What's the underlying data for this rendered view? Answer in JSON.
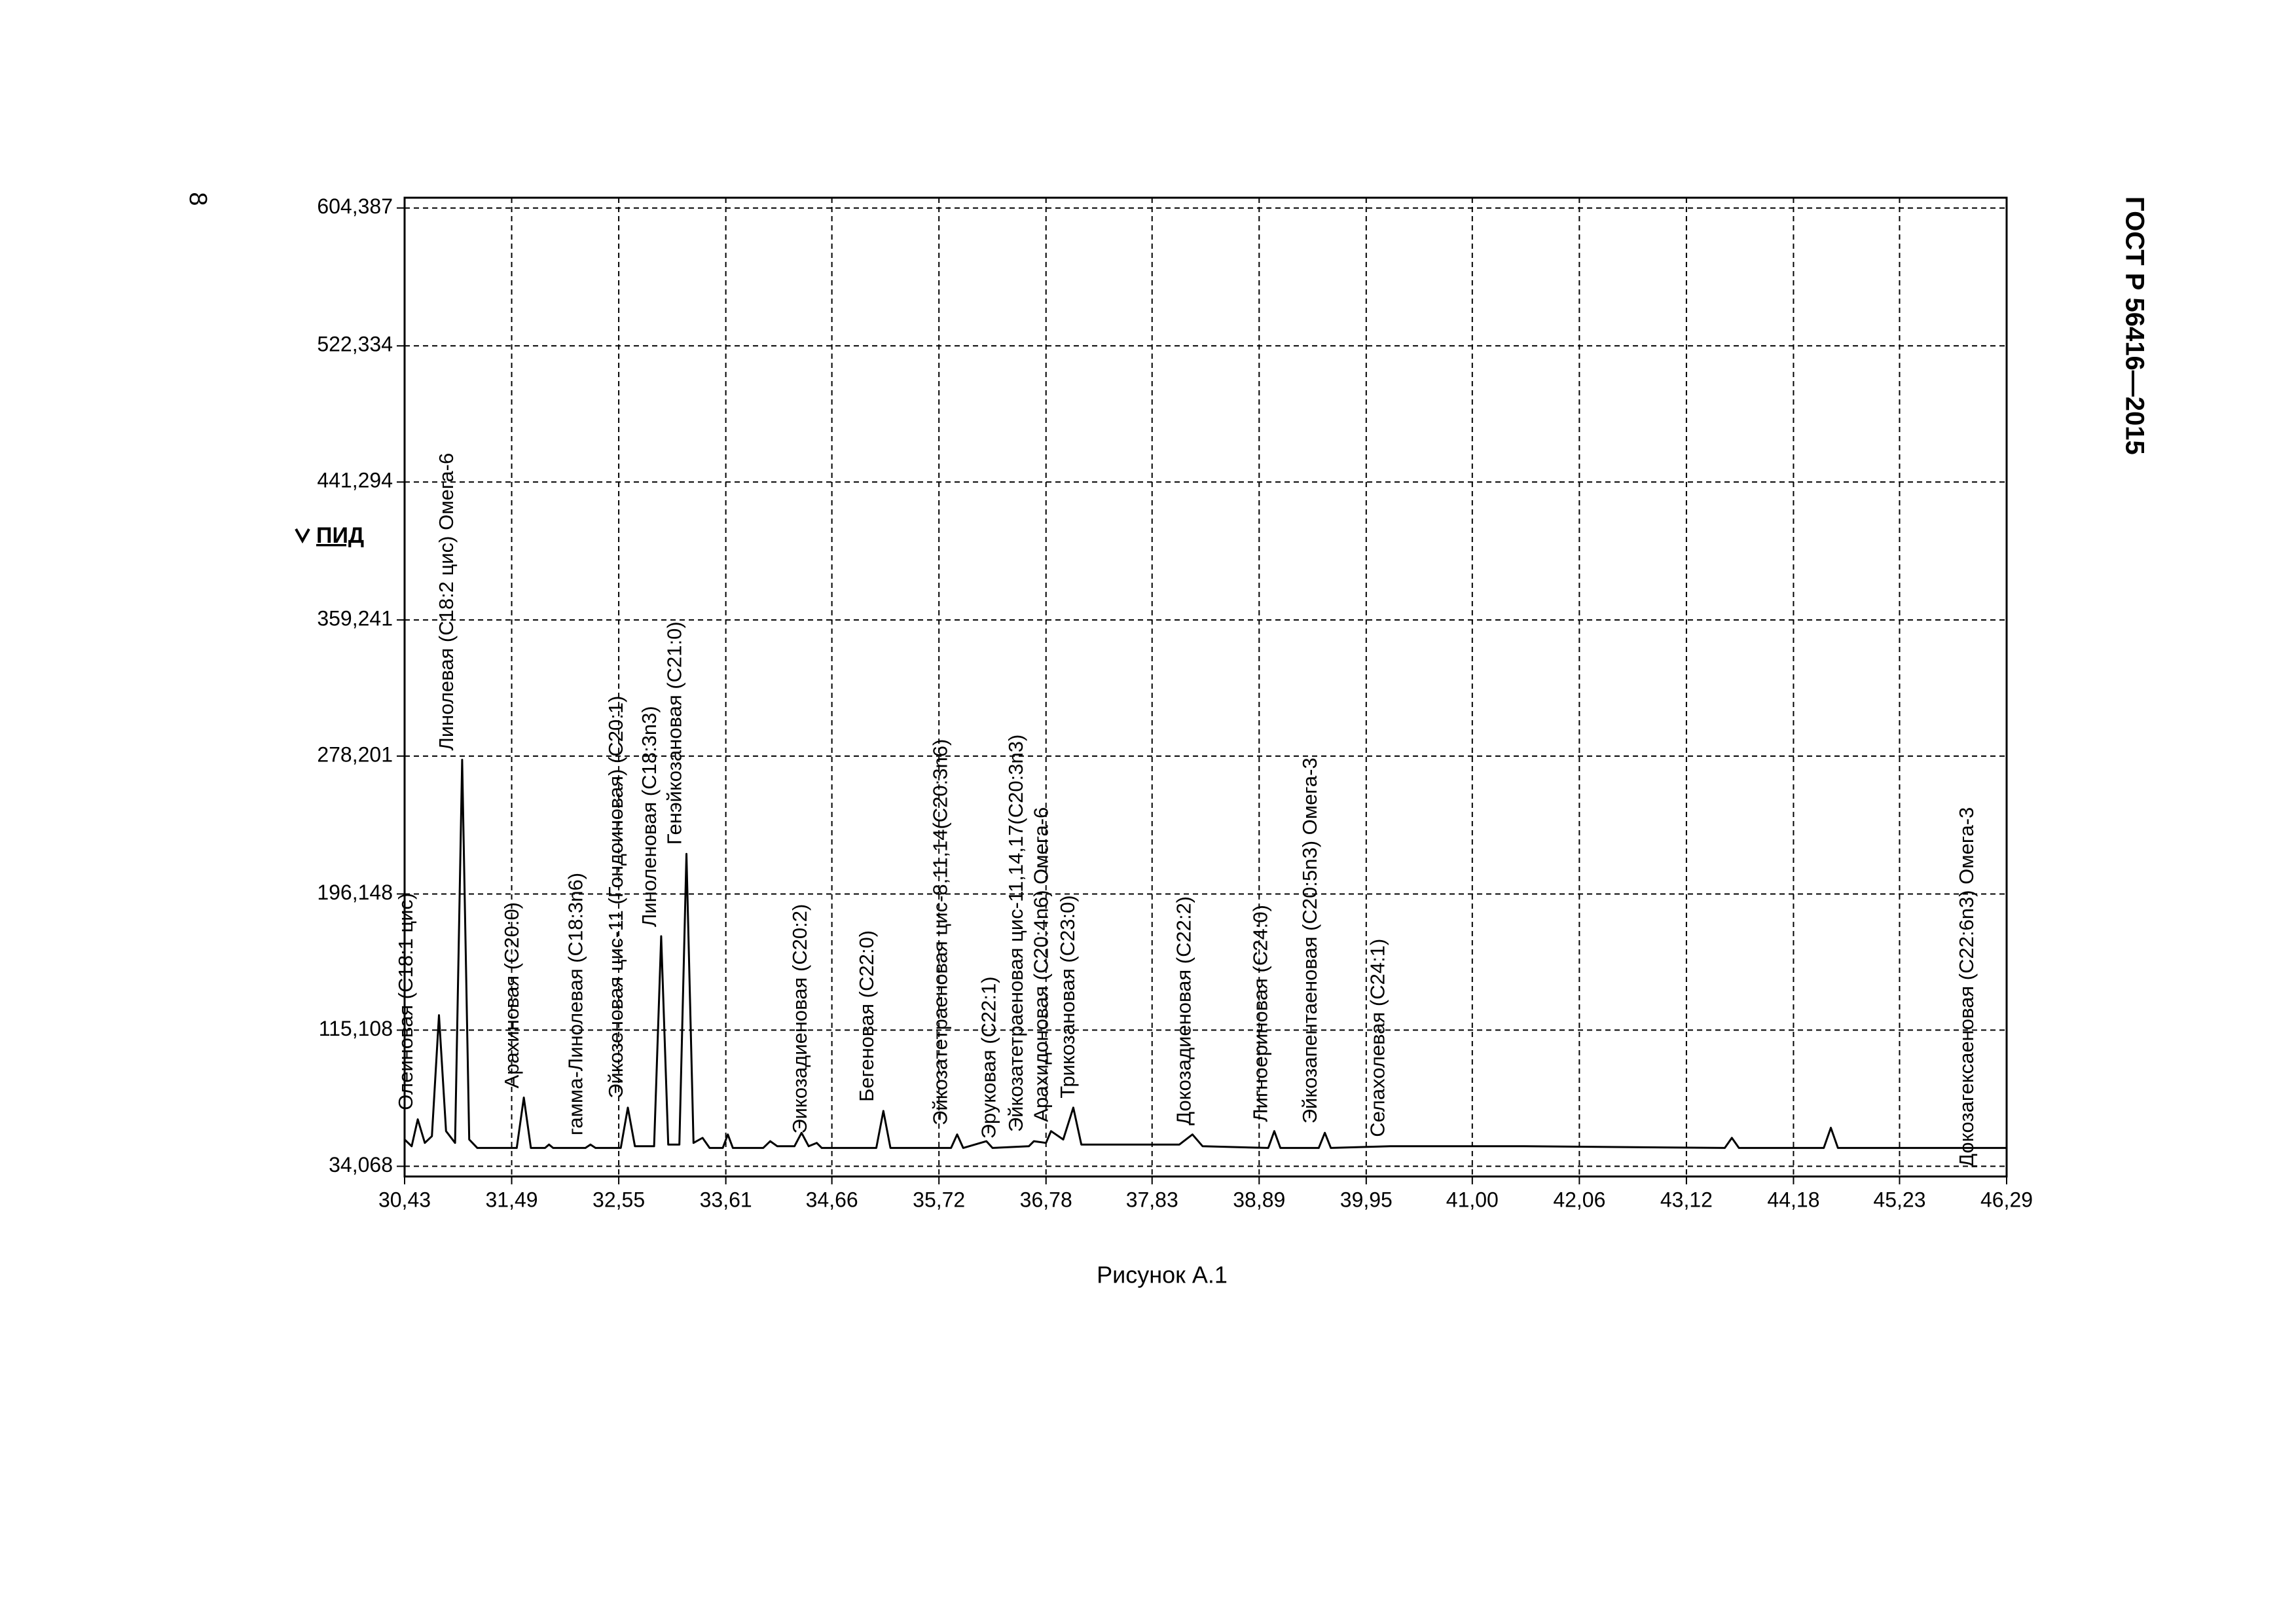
{
  "page_number": "8",
  "document_code": "ГОСТ Р 56416—2015",
  "caption": "Рисунок А.1",
  "chart_data": {
    "type": "line",
    "y_label": "ПИД",
    "color": "#000000",
    "grid": true,
    "xlim": [
      30.43,
      46.29
    ],
    "ylim": [
      28,
      610.5
    ],
    "xticks": [
      {
        "value": 30.43,
        "label": "30,43"
      },
      {
        "value": 31.49,
        "label": "31,49"
      },
      {
        "value": 32.55,
        "label": "32,55"
      },
      {
        "value": 33.61,
        "label": "33,61"
      },
      {
        "value": 34.66,
        "label": "34,66"
      },
      {
        "value": 35.72,
        "label": "35,72"
      },
      {
        "value": 36.78,
        "label": "36,78"
      },
      {
        "value": 37.83,
        "label": "37,83"
      },
      {
        "value": 38.89,
        "label": "38,89"
      },
      {
        "value": 39.95,
        "label": "39,95"
      },
      {
        "value": 41.0,
        "label": "41,00"
      },
      {
        "value": 42.06,
        "label": "42,06"
      },
      {
        "value": 43.12,
        "label": "43,12"
      },
      {
        "value": 44.18,
        "label": "44,18"
      },
      {
        "value": 45.23,
        "label": "45,23"
      },
      {
        "value": 46.29,
        "label": "46,29"
      }
    ],
    "yticks": [
      {
        "value": 34.068,
        "label": "34,068"
      },
      {
        "value": 115.108,
        "label": "115,108"
      },
      {
        "value": 196.148,
        "label": "196,148"
      },
      {
        "value": 278.201,
        "label": "278,201"
      },
      {
        "value": 359.241,
        "label": "359,241"
      },
      {
        "value": 441.294,
        "label": "441,294"
      },
      {
        "value": 522.334,
        "label": "522,334"
      },
      {
        "value": 604.387,
        "label": "604,387"
      }
    ],
    "x": [
      30.43,
      30.5,
      30.56,
      30.63,
      30.7,
      30.77,
      30.84,
      30.93,
      31.0,
      31.07,
      31.15,
      31.54,
      31.61,
      31.68,
      31.82,
      31.86,
      31.9,
      32.22,
      32.27,
      32.32,
      32.57,
      32.64,
      32.71,
      32.9,
      32.97,
      33.04,
      33.15,
      33.22,
      33.29,
      33.38,
      33.45,
      33.58,
      33.63,
      33.68,
      33.98,
      34.05,
      34.12,
      34.29,
      34.36,
      34.43,
      34.51,
      34.56,
      35.1,
      35.17,
      35.24,
      35.84,
      35.9,
      35.96,
      36.19,
      36.25,
      36.61,
      36.66,
      36.78,
      36.83,
      36.95,
      37.05,
      37.13,
      38.1,
      38.23,
      38.33,
      38.98,
      39.04,
      39.1,
      39.48,
      39.54,
      39.6,
      40.19,
      41.51,
      43.5,
      43.57,
      43.64,
      44.48,
      44.55,
      44.62,
      46.29
    ],
    "values": [
      50,
      46,
      62,
      48,
      52,
      124,
      55,
      48,
      276,
      50,
      45,
      45,
      75,
      45,
      45,
      47,
      45,
      45,
      47,
      45,
      45,
      69,
      46,
      46,
      171,
      47,
      47,
      220,
      48,
      51,
      45,
      45,
      53,
      45,
      45,
      49,
      46,
      46,
      54,
      46,
      48,
      45,
      45,
      67,
      45,
      45,
      53,
      45,
      49,
      45,
      46,
      49,
      48,
      55,
      50,
      69,
      47,
      47,
      53,
      46,
      45,
      55,
      45,
      45,
      54,
      45,
      46,
      46,
      45,
      51,
      45,
      45,
      57,
      45,
      45
    ],
    "annotations": [
      {
        "text": "Олеиновая (С18:1 цис)",
        "x": 30.56
      },
      {
        "text": "Линолевая (С18:2 цис) Омега-6",
        "x": 30.96
      },
      {
        "text": "Арахиновая (С20:0)",
        "x": 31.61
      },
      {
        "text": "гамма-Линолевая (С18:3n6)",
        "x": 32.24
      },
      {
        "text": "Эйкозеновая цис-11 (Гондоиновая) (С20:1)",
        "x": 32.64
      },
      {
        "text": "Линоленовая (С18:3n3)",
        "x": 32.97
      },
      {
        "text": "Генэйкозановая (С21:0)",
        "x": 33.22
      },
      {
        "text": "Эикозадиеновая (С20:2)",
        "x": 34.46
      },
      {
        "text": "Бегеновая (С22:0)",
        "x": 35.12
      },
      {
        "text": "Эйкозатетраеновая цис-8,11,14(С20:3n6)",
        "x": 35.85
      },
      {
        "text": "Эруковая (С22:1)",
        "x": 36.33
      },
      {
        "text": "Эйкозатетраеновая цис-11,14,17(С20:3n3)",
        "x": 36.6
      },
      {
        "text": "Арахидоновая (С20:4n6) Омега-6",
        "x": 36.85
      },
      {
        "text": "Трикозановая (С23:0)",
        "x": 37.11
      },
      {
        "text": "Докозадиеновая (С22:2)",
        "x": 38.26
      },
      {
        "text": "Лигноериновая (С24:0)",
        "x": 39.02
      },
      {
        "text": "Эйкозапентаеновая (С20:5n3) Омега-3",
        "x": 39.51
      },
      {
        "text": "Селахолевая (С24:1)",
        "x": 40.18
      },
      {
        "text": "Докозагексаеновая (С22:6n3) Омега-3",
        "x": 46.01
      }
    ]
  }
}
